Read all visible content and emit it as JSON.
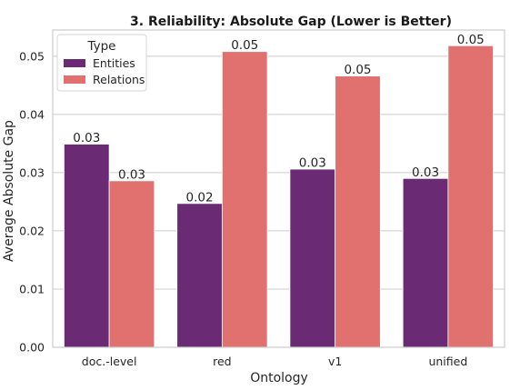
{
  "chart_data": {
    "type": "bar",
    "title": "3. Reliability: Absolute Gap (Lower is Better)",
    "xlabel": "Ontology",
    "ylabel": "Average Absolute Gap",
    "categories": [
      "doc.-level",
      "red",
      "v1",
      "unified"
    ],
    "series": [
      {
        "name": "Entities",
        "color": "#6a2a74",
        "values": [
          0.0349,
          0.0247,
          0.0306,
          0.029
        ],
        "labels": [
          "0.03",
          "0.02",
          "0.03",
          "0.03"
        ]
      },
      {
        "name": "Relations",
        "color": "#e1716e",
        "values": [
          0.0286,
          0.0508,
          0.0466,
          0.0518
        ],
        "labels": [
          "0.03",
          "0.05",
          "0.05",
          "0.05"
        ]
      }
    ],
    "ylim": [
      0,
      0.0545
    ],
    "yticks": [
      0,
      0.01,
      0.02,
      0.03,
      0.04,
      0.05
    ],
    "ytick_labels": [
      "0.00",
      "0.01",
      "0.02",
      "0.03",
      "0.04",
      "0.05"
    ],
    "grid": true,
    "legend": {
      "title": "Type",
      "position": "top-left"
    }
  }
}
